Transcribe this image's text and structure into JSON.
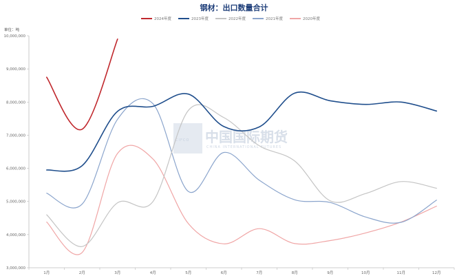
{
  "chart_data": {
    "type": "line",
    "title": "钢材：出口数量合计",
    "unit_label": "单位：吨",
    "categories": [
      "1月",
      "2月",
      "3月",
      "4月",
      "5月",
      "6月",
      "7月",
      "8月",
      "9月",
      "10月",
      "11月",
      "12月"
    ],
    "ylim": [
      3000000,
      10000000
    ],
    "yticks": [
      "3,000,000",
      "4,000,000",
      "5,000,000",
      "6,000,000",
      "7,000,000",
      "8,000,000",
      "9,000,000",
      "10,000,000"
    ],
    "ytick_values": [
      3000000,
      4000000,
      5000000,
      6000000,
      7000000,
      8000000,
      9000000,
      10000000
    ],
    "legend_position": "top-center",
    "grid": false,
    "watermark": {
      "text": "中国国际期货",
      "logo": "CIFCO",
      "en": "CHINA INTERNATIONAL FUTURES"
    },
    "series": [
      {
        "name": "2024年度",
        "color": "#c0282d",
        "width": 1.6,
        "values": [
          8750000,
          7180000,
          9900000,
          null,
          null,
          null,
          null,
          null,
          null,
          null,
          null,
          null
        ]
      },
      {
        "name": "2023年度",
        "color": "#1f4e8c",
        "width": 1.6,
        "values": [
          5950000,
          6080000,
          7720000,
          7870000,
          8240000,
          7260000,
          7250000,
          8270000,
          8040000,
          7930000,
          8000000,
          7730000
        ]
      },
      {
        "name": "2022年度",
        "color": "#c4c4c4",
        "width": 1.2,
        "values": [
          4600000,
          3640000,
          4960000,
          5000000,
          7750000,
          7530000,
          6680000,
          6220000,
          5020000,
          5240000,
          5600000,
          5400000
        ]
      },
      {
        "name": "2021年度",
        "color": "#8aa4cc",
        "width": 1.2,
        "values": [
          5250000,
          4920000,
          7480000,
          7950000,
          5300000,
          6480000,
          5640000,
          5050000,
          4970000,
          4530000,
          4370000,
          5040000
        ]
      },
      {
        "name": "2020年度",
        "color": "#f0a5a5",
        "width": 1.2,
        "values": [
          4380000,
          3460000,
          6450000,
          6280000,
          4330000,
          3720000,
          4180000,
          3730000,
          3820000,
          4050000,
          4380000,
          4860000
        ]
      }
    ]
  }
}
